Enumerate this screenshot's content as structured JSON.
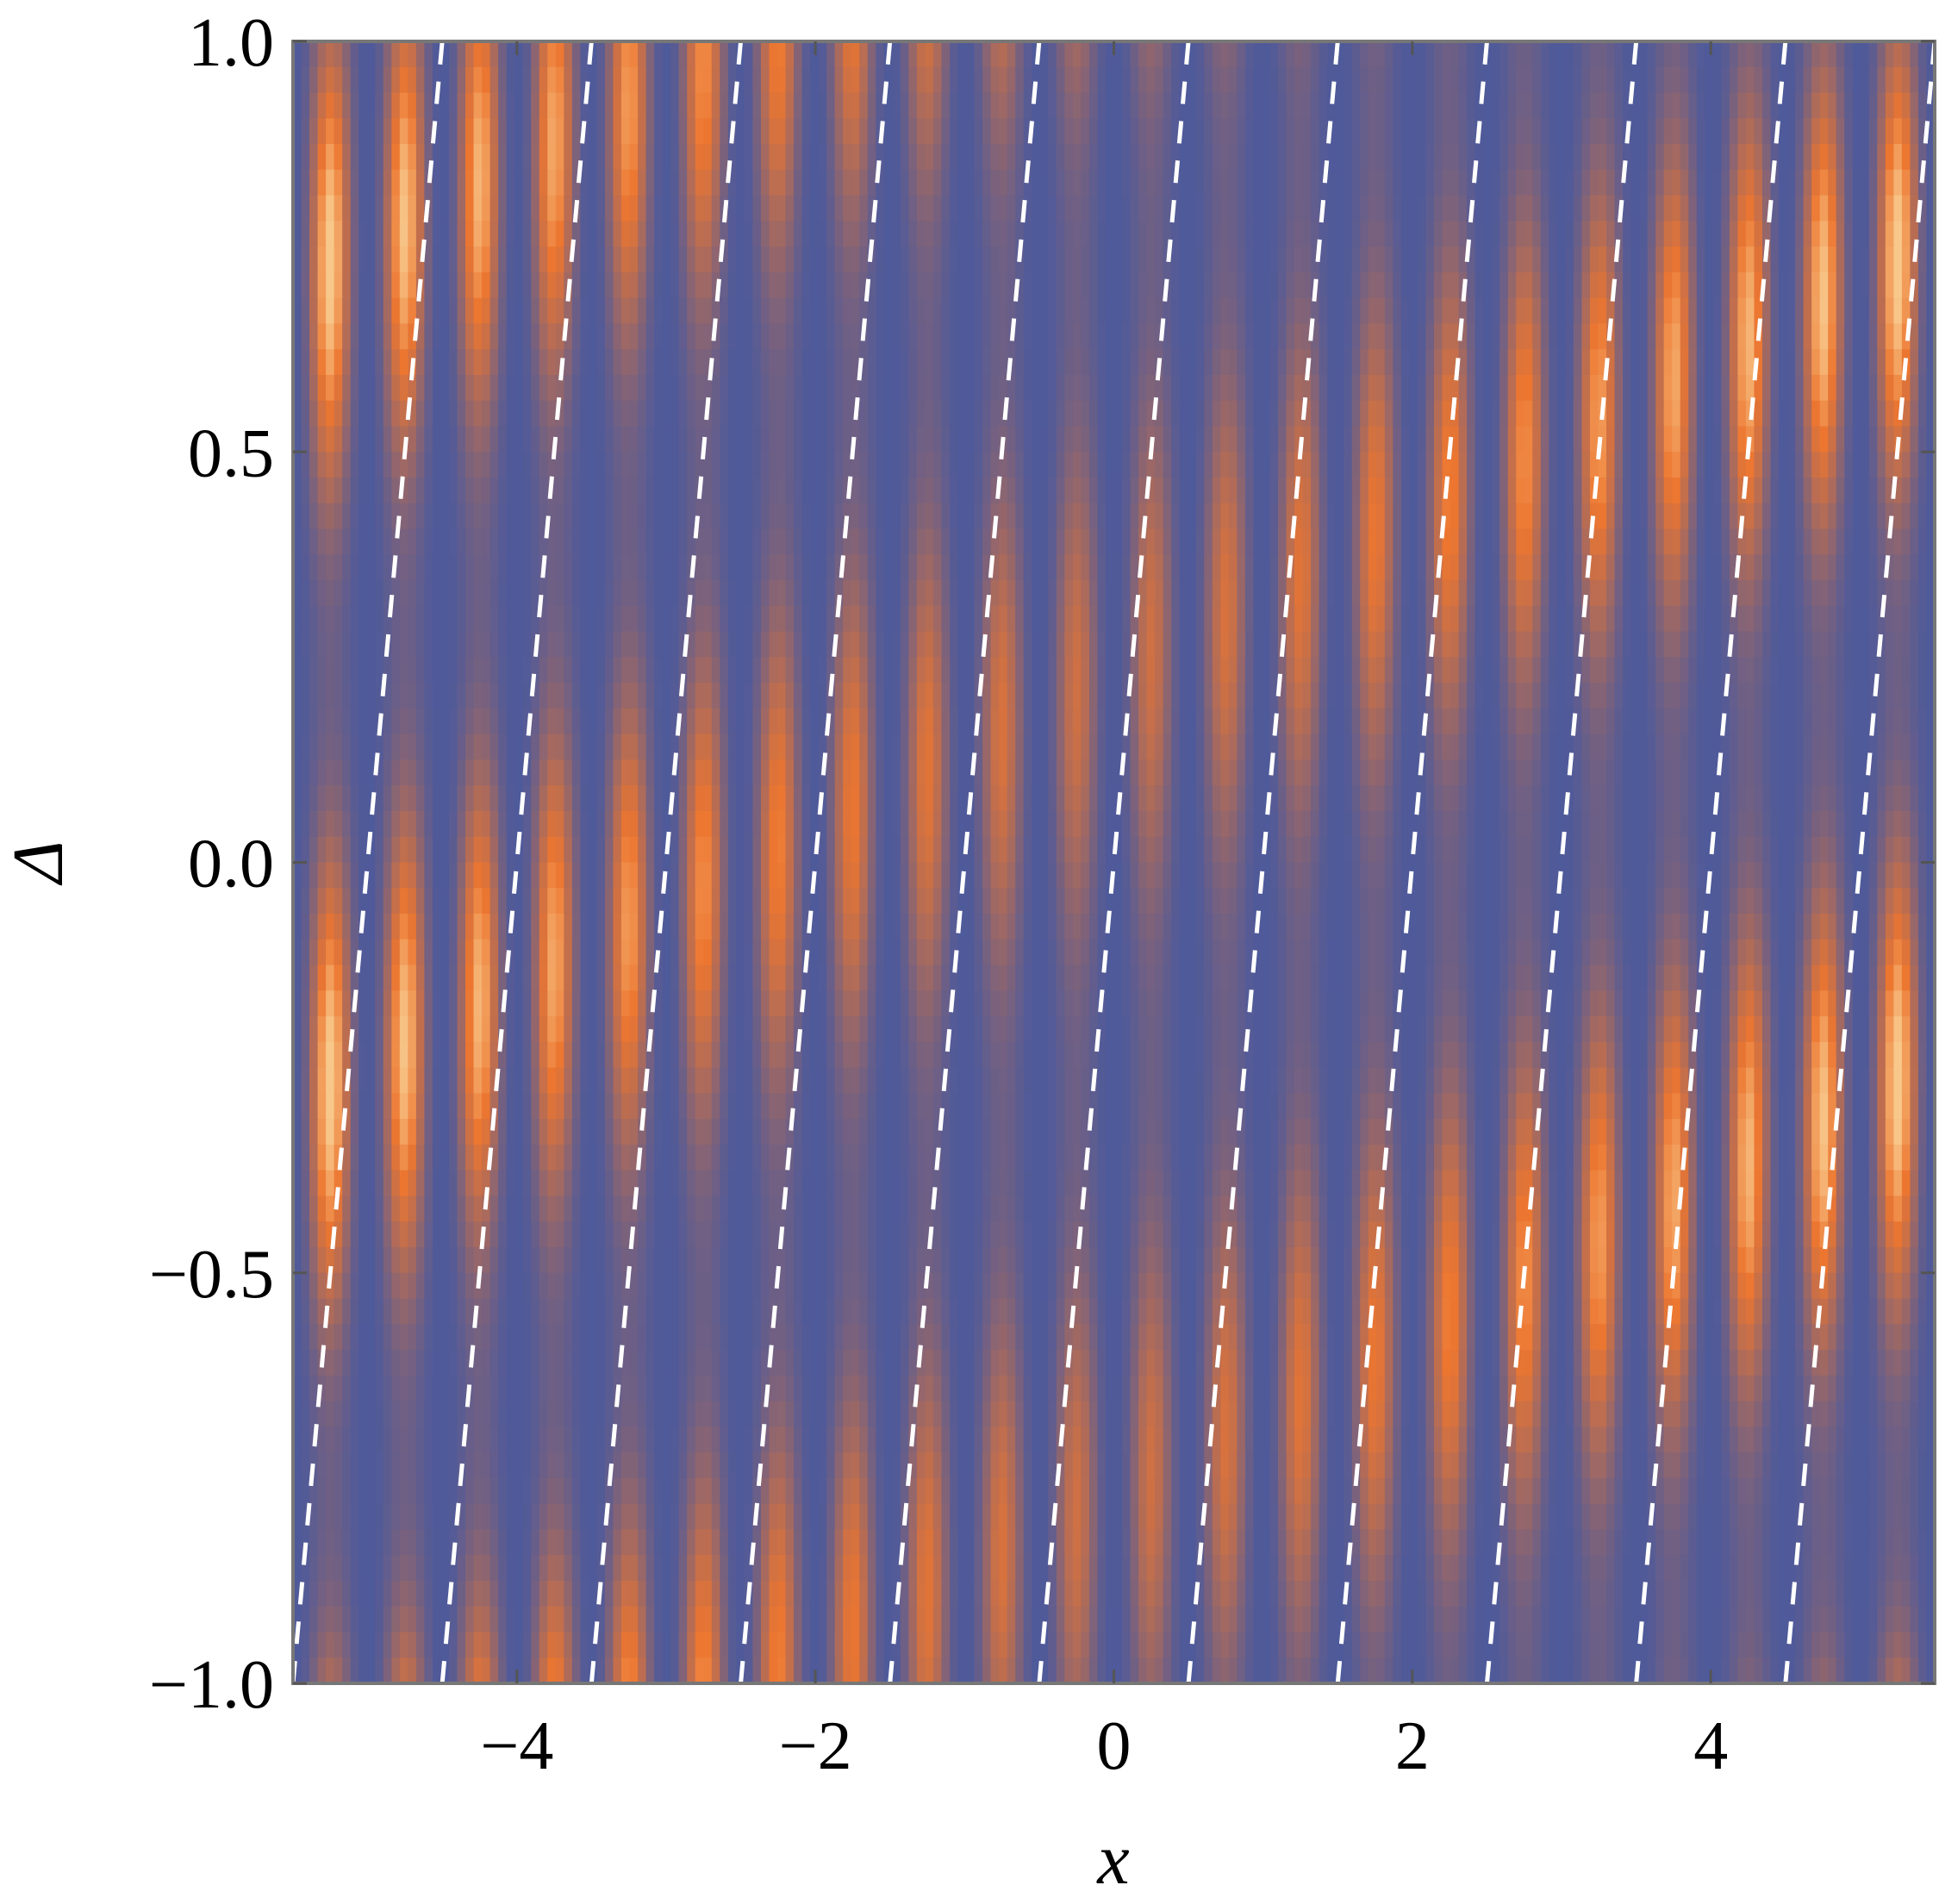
{
  "chart_data": {
    "type": "heatmap",
    "xlabel": "x",
    "ylabel": "Δ",
    "xlim": [
      -5.5,
      5.5
    ],
    "ylim": [
      -1.0,
      1.0
    ],
    "x_ticks": [
      {
        "value": -4,
        "label": "−4"
      },
      {
        "value": -2,
        "label": "−2"
      },
      {
        "value": 0,
        "label": "0"
      },
      {
        "value": 2,
        "label": "2"
      },
      {
        "value": 4,
        "label": "4"
      }
    ],
    "y_ticks": [
      {
        "value": 1.0,
        "label": "1.0"
      },
      {
        "value": 0.5,
        "label": "0.5"
      },
      {
        "value": 0.0,
        "label": "0.0"
      },
      {
        "value": -0.5,
        "label": "−0.5"
      },
      {
        "value": -1.0,
        "label": "−1.0"
      }
    ],
    "colormap": {
      "low": "#4f5a9a",
      "mid": "#ec7630",
      "high": "#f8c78a"
    },
    "fringe_period_x": 0.5,
    "dashed_lines": {
      "color": "#ffffff",
      "style": "dashed",
      "x_at_bottom": [
        -5.5,
        -4.5,
        -3.5,
        -2.5,
        -1.5,
        -0.5,
        0.5,
        1.5,
        2.5,
        3.5,
        4.5
      ],
      "x_at_top": [
        -4.5,
        -3.5,
        -2.5,
        -1.5,
        -0.5,
        0.5,
        1.5,
        2.5,
        3.5,
        4.5,
        5.5
      ]
    },
    "grid": false,
    "legend": "none"
  }
}
